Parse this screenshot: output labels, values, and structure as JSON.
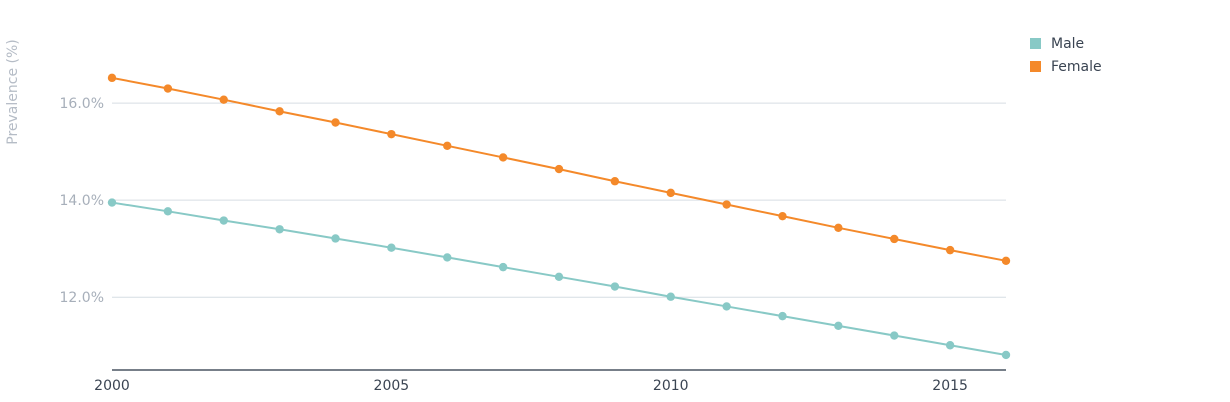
{
  "chart_data": {
    "type": "line",
    "ylabel": "Prevalence (%)",
    "x": [
      2000,
      2001,
      2002,
      2003,
      2004,
      2005,
      2006,
      2007,
      2008,
      2009,
      2010,
      2011,
      2012,
      2013,
      2014,
      2015,
      2016
    ],
    "xticks": [
      "2000",
      "2005",
      "2010",
      "2015"
    ],
    "yticks": [
      "12.0%",
      "14.0%",
      "16.0%"
    ],
    "ylim": [
      10.5,
      17.3
    ],
    "grid": true,
    "legend_position": "top-right",
    "series": [
      {
        "name": "Male",
        "color": "#88c9c6",
        "values": [
          13.95,
          13.77,
          13.58,
          13.4,
          13.21,
          13.02,
          12.82,
          12.62,
          12.42,
          12.22,
          12.01,
          11.81,
          11.61,
          11.41,
          11.21,
          11.01,
          10.81
        ]
      },
      {
        "name": "Female",
        "color": "#f4892a",
        "values": [
          16.52,
          16.3,
          16.07,
          15.83,
          15.6,
          15.36,
          15.12,
          14.88,
          14.64,
          14.39,
          14.15,
          13.91,
          13.67,
          13.43,
          13.2,
          12.97,
          12.75
        ]
      }
    ]
  }
}
